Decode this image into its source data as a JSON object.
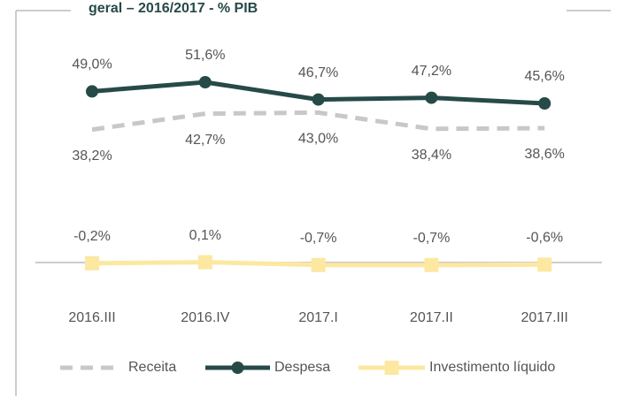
{
  "chart_data": {
    "type": "line",
    "title": "geral – 2016/2017 - % PIB",
    "categories": [
      "2016.III",
      "2016.IV",
      "2017.I",
      "2017.II",
      "2017.III"
    ],
    "series": [
      {
        "name": "Receita",
        "color": "#c8c8c8",
        "values": [
          38.2,
          42.7,
          43.0,
          38.4,
          38.6
        ],
        "value_labels": [
          "38,2%",
          "42,7%",
          "43,0%",
          "38,4%",
          "38,6%"
        ]
      },
      {
        "name": "Despesa",
        "color": "#264a47",
        "values": [
          49.0,
          51.6,
          46.7,
          47.2,
          45.6
        ],
        "value_labels": [
          "49,0%",
          "51,6%",
          "46,7%",
          "47,2%",
          "45,6%"
        ]
      },
      {
        "name": "Investimento líquido",
        "color": "#fce8a0",
        "values": [
          -0.2,
          0.1,
          -0.7,
          -0.7,
          -0.6
        ],
        "value_labels": [
          "-0,2%",
          "0,1%",
          "-0,7%",
          "-0,7%",
          "-0,6%"
        ]
      }
    ]
  }
}
